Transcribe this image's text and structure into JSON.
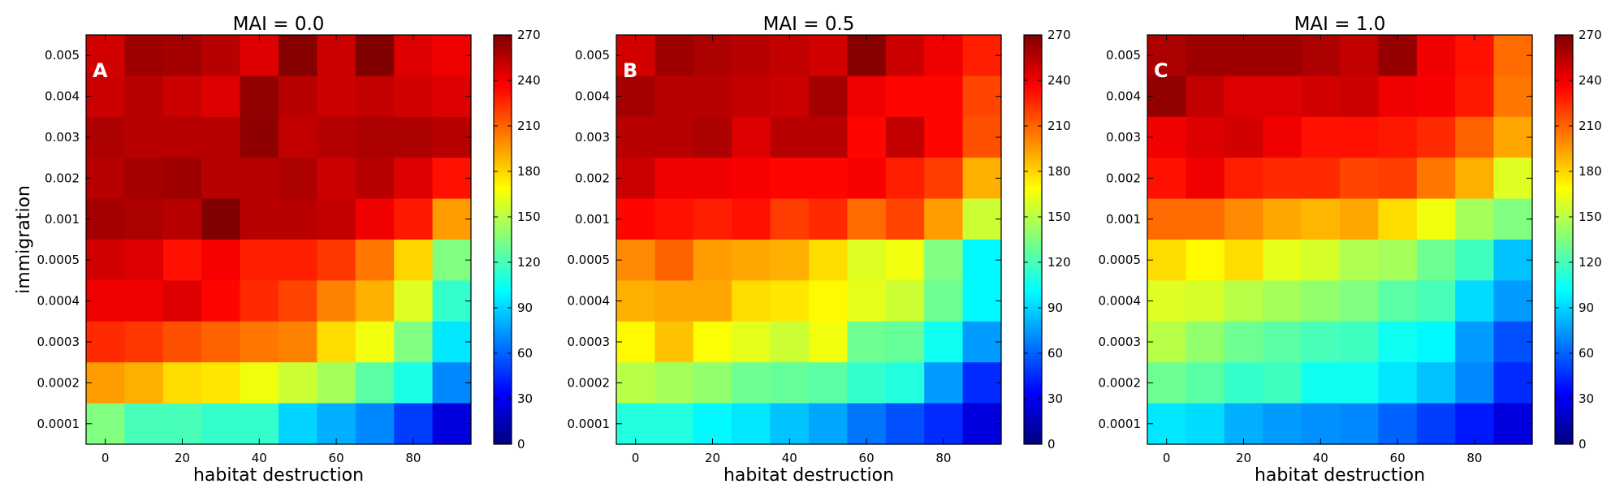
{
  "chart_data": [
    {
      "type": "heatmap",
      "title": "MAI = 0.0",
      "panel_label": "A",
      "xlabel": "habitat destruction",
      "ylabel": "immigration",
      "x_values": [
        0,
        10,
        20,
        30,
        40,
        50,
        60,
        70,
        80,
        90
      ],
      "x_ticks": [
        "0",
        "20",
        "40",
        "60",
        "80"
      ],
      "y_categories": [
        "0.005",
        "0.004",
        "0.003",
        "0.002",
        "0.001",
        "0.0005",
        "0.0004",
        "0.0003",
        "0.0002",
        "0.0001"
      ],
      "values": [
        [
          248,
          262,
          260,
          255,
          245,
          268,
          250,
          270,
          245,
          240
        ],
        [
          250,
          255,
          250,
          245,
          265,
          255,
          250,
          252,
          248,
          245
        ],
        [
          258,
          255,
          255,
          255,
          266,
          252,
          256,
          258,
          258,
          255
        ],
        [
          255,
          260,
          262,
          255,
          255,
          258,
          250,
          255,
          245,
          232
        ],
        [
          260,
          258,
          255,
          270,
          255,
          255,
          252,
          240,
          230,
          195
        ],
        [
          248,
          245,
          232,
          238,
          228,
          228,
          222,
          205,
          180,
          135
        ],
        [
          240,
          240,
          245,
          235,
          225,
          218,
          202,
          190,
          160,
          115
        ],
        [
          225,
          222,
          215,
          210,
          205,
          202,
          178,
          165,
          135,
          95
        ],
        [
          195,
          190,
          178,
          175,
          165,
          155,
          145,
          125,
          108,
          70
        ],
        [
          135,
          120,
          120,
          115,
          115,
          90,
          80,
          70,
          50,
          25
        ]
      ],
      "colorbar": {
        "min": 0,
        "max": 270,
        "ticks": [
          "0",
          "30",
          "60",
          "90",
          "120",
          "150",
          "180",
          "210",
          "240",
          "270"
        ]
      }
    },
    {
      "type": "heatmap",
      "title": "MAI = 0.5",
      "panel_label": "B",
      "xlabel": "habitat destruction",
      "ylabel": "",
      "x_values": [
        0,
        10,
        20,
        30,
        40,
        50,
        60,
        70,
        80,
        90
      ],
      "x_ticks": [
        "0",
        "20",
        "40",
        "60",
        "80"
      ],
      "y_categories": [
        "0.005",
        "0.004",
        "0.003",
        "0.002",
        "0.001",
        "0.0005",
        "0.0004",
        "0.0003",
        "0.0002",
        "0.0001"
      ],
      "values": [
        [
          248,
          262,
          258,
          255,
          252,
          248,
          268,
          250,
          240,
          228
        ],
        [
          260,
          255,
          255,
          252,
          250,
          260,
          240,
          235,
          235,
          218
        ],
        [
          255,
          255,
          258,
          245,
          255,
          255,
          235,
          252,
          235,
          215
        ],
        [
          250,
          240,
          240,
          238,
          235,
          235,
          238,
          228,
          220,
          190
        ],
        [
          235,
          232,
          228,
          232,
          220,
          225,
          208,
          218,
          195,
          155
        ],
        [
          200,
          210,
          195,
          192,
          190,
          178,
          160,
          165,
          135,
          100
        ],
        [
          190,
          192,
          192,
          178,
          175,
          170,
          162,
          155,
          130,
          100
        ],
        [
          170,
          185,
          168,
          162,
          155,
          165,
          130,
          128,
          105,
          75
        ],
        [
          150,
          145,
          140,
          130,
          128,
          125,
          115,
          110,
          75,
          45
        ],
        [
          110,
          110,
          100,
          95,
          85,
          78,
          65,
          55,
          45,
          25
        ]
      ],
      "colorbar": {
        "min": 0,
        "max": 270,
        "ticks": [
          "0",
          "30",
          "60",
          "90",
          "120",
          "150",
          "180",
          "210",
          "240",
          "270"
        ]
      }
    },
    {
      "type": "heatmap",
      "title": "MAI = 1.0",
      "panel_label": "C",
      "xlabel": "habitat destruction",
      "ylabel": "",
      "x_values": [
        0,
        10,
        20,
        30,
        40,
        50,
        60,
        70,
        80,
        90
      ],
      "x_ticks": [
        "0",
        "20",
        "40",
        "60",
        "80"
      ],
      "y_categories": [
        "0.005",
        "0.004",
        "0.003",
        "0.002",
        "0.001",
        "0.0005",
        "0.0004",
        "0.0003",
        "0.0002",
        "0.0001"
      ],
      "values": [
        [
          258,
          262,
          262,
          262,
          258,
          252,
          264,
          240,
          232,
          208
        ],
        [
          265,
          252,
          245,
          245,
          248,
          250,
          240,
          238,
          230,
          205
        ],
        [
          240,
          245,
          248,
          240,
          232,
          232,
          230,
          225,
          210,
          192
        ],
        [
          232,
          240,
          228,
          225,
          225,
          218,
          220,
          205,
          190,
          160
        ],
        [
          208,
          208,
          200,
          192,
          188,
          192,
          178,
          165,
          145,
          135
        ],
        [
          178,
          170,
          178,
          162,
          158,
          148,
          145,
          130,
          118,
          85
        ],
        [
          160,
          158,
          150,
          145,
          140,
          135,
          125,
          120,
          92,
          75
        ],
        [
          150,
          140,
          130,
          125,
          120,
          118,
          105,
          100,
          75,
          55
        ],
        [
          130,
          125,
          115,
          118,
          105,
          105,
          95,
          85,
          70,
          45
        ],
        [
          95,
          92,
          80,
          75,
          72,
          70,
          60,
          50,
          40,
          25
        ]
      ],
      "colorbar": {
        "min": 0,
        "max": 270,
        "ticks": [
          "0",
          "30",
          "60",
          "90",
          "120",
          "150",
          "180",
          "210",
          "240",
          "270"
        ]
      }
    }
  ]
}
